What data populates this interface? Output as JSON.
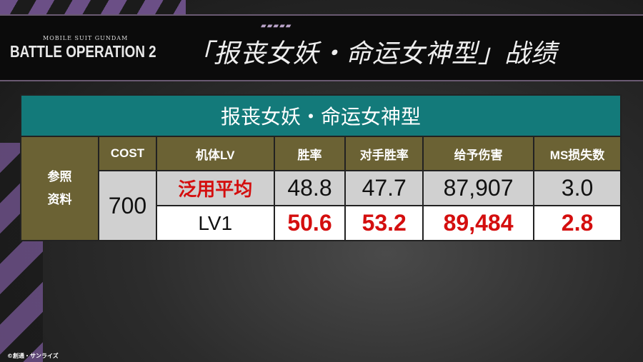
{
  "header": {
    "logo_sub": "MOBILE SUIT GUNDAM",
    "logo": "BATTLE OPERATION 2",
    "title": "「报丧女妖・命运女神型」战绩"
  },
  "table": {
    "title": "报丧女妖・命运女神型",
    "side_label_1": "参照",
    "side_label_2": "资料",
    "columns": [
      "COST",
      "机体LV",
      "胜率",
      "对手胜率",
      "给予伤害",
      "MS损失数"
    ],
    "cost": "700",
    "rows": [
      {
        "label": "泛用平均",
        "win_rate": "48.8",
        "opp_win_rate": "47.7",
        "damage": "87,907",
        "ms_lost": "3.0"
      },
      {
        "label": "LV1",
        "win_rate": "50.6",
        "opp_win_rate": "53.2",
        "damage": "89,484",
        "ms_lost": "2.8"
      }
    ]
  },
  "copyright": "©創通・サンライズ",
  "colors": {
    "title_band": "#137a7a",
    "header_band": "#6b6234",
    "highlight": "#d40e0e"
  }
}
